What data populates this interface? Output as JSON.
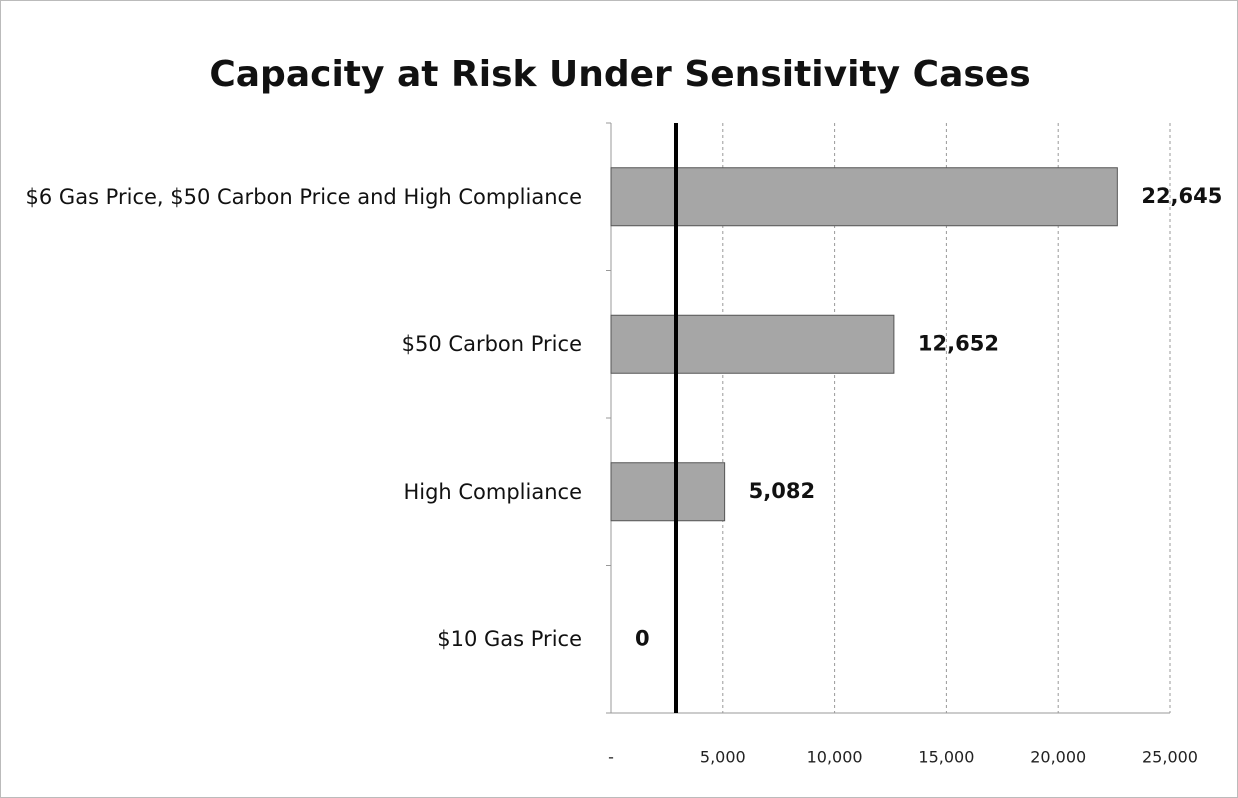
{
  "chart_data": {
    "type": "hbar",
    "title": "Capacity at Risk Under Sensitivity Cases",
    "categories": [
      "$6 Gas Price, $50 Carbon Price and High Compliance",
      "$50 Carbon Price",
      "High Compliance",
      "$10 Gas Price"
    ],
    "values": [
      22645,
      12652,
      5082,
      0
    ],
    "value_labels": [
      "22,645",
      "12,652",
      "5,082",
      "0"
    ],
    "color": "#a6a6a6",
    "xlim": [
      0,
      25000
    ],
    "xticks": [
      {
        "value": 0,
        "label": "-"
      },
      {
        "value": 5000,
        "label": "5,000"
      },
      {
        "value": 10000,
        "label": "10,000"
      },
      {
        "value": 15000,
        "label": "15,000"
      },
      {
        "value": 20000,
        "label": "20,000"
      },
      {
        "value": 25000,
        "label": "25,000"
      }
    ],
    "grid": true
  }
}
